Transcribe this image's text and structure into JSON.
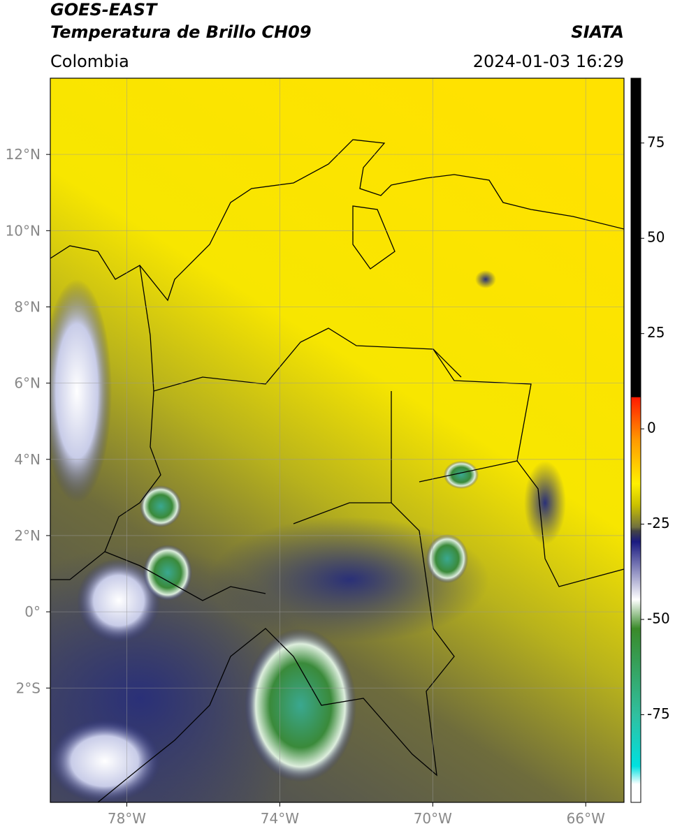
{
  "header": {
    "title": "GOES-EAST",
    "subtitle": "Temperatura de Brillo CH09",
    "region": "Colombia",
    "source": "SIATA",
    "datetime": "2024-01-03 16:29"
  },
  "map": {
    "lonlim": [
      -80,
      -65
    ],
    "latlim": [
      -5,
      14
    ],
    "lon_ticks": [
      {
        "value": -78,
        "label": "78°W"
      },
      {
        "value": -74,
        "label": "74°W"
      },
      {
        "value": -70,
        "label": "70°W"
      },
      {
        "value": -66,
        "label": "66°W"
      }
    ],
    "lat_ticks": [
      {
        "value": 12,
        "label": "12°N"
      },
      {
        "value": 10,
        "label": "10°N"
      },
      {
        "value": 8,
        "label": "8°N"
      },
      {
        "value": 6,
        "label": "6°N"
      },
      {
        "value": 4,
        "label": "4°N"
      },
      {
        "value": 2,
        "label": "2°N"
      },
      {
        "value": 0,
        "label": "0°"
      },
      {
        "value": -2,
        "label": "2°S"
      }
    ]
  },
  "colorbar": {
    "lim": [
      -98,
      92
    ],
    "ticks": [
      75,
      50,
      25,
      0,
      -25,
      -50,
      -75
    ]
  }
}
